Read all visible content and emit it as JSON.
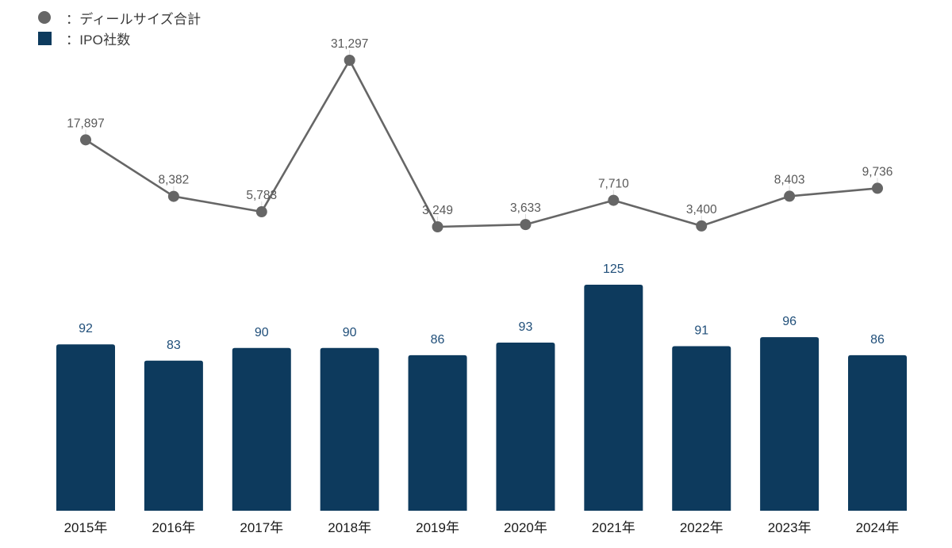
{
  "legend": {
    "line_label": "：ディールサイズ合計",
    "bar_label": "：IPO社数"
  },
  "colors": {
    "bar": "#0d3a5d",
    "line": "#666666",
    "marker": "#666666",
    "line_value_label": "#595959",
    "bar_value_label": "#1f4e79",
    "axis_label": "#1a1a1a",
    "leader_line": "#d9d9d9",
    "background": "#ffffff"
  },
  "chart_data": {
    "type": "combo",
    "categories": [
      "2015年",
      "2016年",
      "2017年",
      "2018年",
      "2019年",
      "2020年",
      "2021年",
      "2022年",
      "2023年",
      "2024年"
    ],
    "series": [
      {
        "name": "ディールサイズ合計",
        "type": "line",
        "values": [
          17897,
          8382,
          5783,
          31297,
          3249,
          3633,
          7710,
          3400,
          8403,
          9736
        ],
        "value_labels": [
          "17,897",
          "8,382",
          "5,783",
          "31,297",
          "3,249",
          "3,633",
          "7,710",
          "3,400",
          "8,403",
          "9,736"
        ]
      },
      {
        "name": "IPO社数",
        "type": "bar",
        "values": [
          92,
          83,
          90,
          90,
          86,
          93,
          125,
          91,
          96,
          86
        ],
        "value_labels": [
          "92",
          "83",
          "90",
          "90",
          "86",
          "93",
          "125",
          "91",
          "96",
          "86"
        ]
      }
    ],
    "title": "",
    "xlabel": "",
    "ylabel": "",
    "layout_hints": {
      "legend_position": "top-left",
      "grid": false,
      "axes_drawn": false,
      "value_labels_shown": true,
      "bar_ylim": [
        0,
        140
      ],
      "line_ylim": [
        0,
        35000
      ]
    }
  }
}
